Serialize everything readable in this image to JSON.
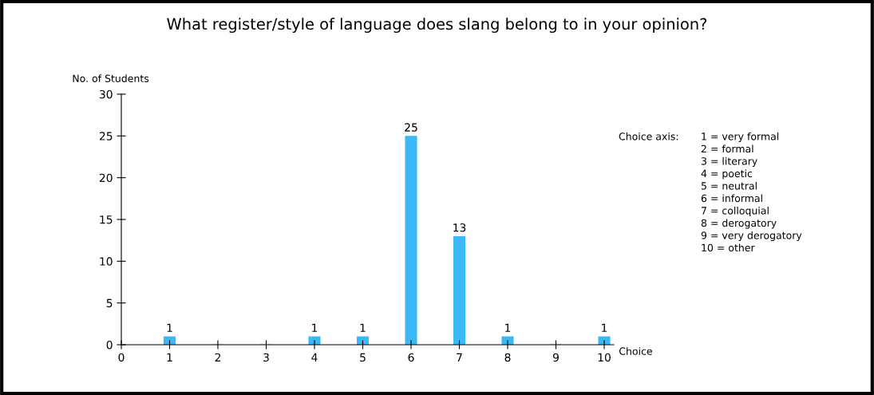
{
  "chart_data": {
    "type": "bar",
    "title": "What register/style of language does slang belong to in your opinion?",
    "xlabel": "Choice",
    "ylabel": "No. of Students",
    "x": [
      1,
      2,
      3,
      4,
      5,
      6,
      7,
      8,
      9,
      10
    ],
    "values": [
      1,
      0,
      0,
      1,
      1,
      25,
      13,
      1,
      0,
      1
    ],
    "value_labels": [
      "1",
      null,
      null,
      "1",
      "1",
      "25",
      "13",
      "1",
      null,
      "1"
    ],
    "color": "#3cb9f5",
    "xlim": [
      0,
      10.2
    ],
    "xticks": [
      0,
      1,
      2,
      3,
      4,
      5,
      6,
      7,
      8,
      9,
      10
    ],
    "ylim": [
      0,
      30
    ],
    "yticks": [
      0,
      5,
      10,
      15,
      20,
      25,
      30
    ],
    "grid": false,
    "legend": false,
    "annotations": [
      "Choice axis:",
      "1 = very formal",
      "2 = formal",
      "3 = literary",
      "4 = poetic",
      "5 = neutral",
      "6 = informal",
      "7 = colloquial",
      "8 = derogatory",
      "9 = very derogatory",
      "10 = other"
    ]
  }
}
